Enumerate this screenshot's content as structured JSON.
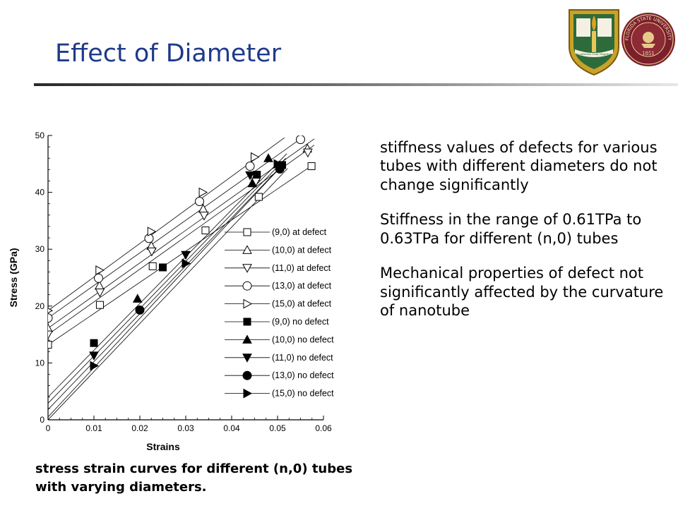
{
  "slide": {
    "title": "Effect of Diameter",
    "caption": "stress strain curves for different (n,0) tubes with varying diameters.",
    "bullets": [
      "stiffness values of defects for various tubes with different diameters do not change significantly",
      "Stiffness in the range of 0.61TPa to 0.63TPa for different (n,0) tubes",
      "Mechanical properties of defect not significantly affected by the curvature of nanotube"
    ],
    "crest_motto": "Excellentia Cum Dignitate",
    "seal_text": "FLORIDA STATE UNIVERSITY",
    "seal_year": "1851",
    "colors": {
      "title": "#1f3a8a",
      "crest_green": "#2e6b3a",
      "crest_gold": "#c9a227",
      "seal_red": "#7a1f2b"
    }
  },
  "chart_data": {
    "type": "scatter",
    "xlabel": "Strains",
    "ylabel": "Stress (GPa)",
    "xlim": [
      0,
      0.06
    ],
    "ylim": [
      0,
      50
    ],
    "xticks": [
      "0",
      "0.01",
      "0.02",
      "0.03",
      "0.04",
      "0.05",
      "0.06"
    ],
    "yticks": [
      "0",
      "10",
      "20",
      "30",
      "40",
      "50"
    ],
    "legend_position": "right",
    "grid": false,
    "series": [
      {
        "name": "(9,0) at defect",
        "marker": "square-open",
        "x": [
          0,
          0.0113,
          0.0228,
          0.0343,
          0.0459,
          0.0574
        ],
        "y": [
          13.2,
          20.2,
          27.0,
          33.3,
          39.2,
          44.6
        ]
      },
      {
        "name": "(10,0) at defect",
        "marker": "triangle-up-open",
        "x": [
          0,
          0.0112,
          0.0225,
          0.0338,
          0.0452,
          0.0565
        ],
        "y": [
          16.1,
          23.6,
          30.6,
          37.1,
          42.7,
          47.7
        ]
      },
      {
        "name": "(11,0) at defect",
        "marker": "triangle-down-open",
        "x": [
          0,
          0.0113,
          0.0226,
          0.034,
          0.0453,
          0.0566
        ],
        "y": [
          15.0,
          22.4,
          29.6,
          35.9,
          41.9,
          47.0
        ]
      },
      {
        "name": "(13,0) at defect",
        "marker": "circle-open",
        "x": [
          0,
          0.011,
          0.022,
          0.033,
          0.044,
          0.055
        ],
        "y": [
          17.9,
          24.9,
          31.9,
          38.4,
          44.6,
          49.3
        ]
      },
      {
        "name": "(15,0) at defect",
        "marker": "triangle-right-open",
        "x": [
          0,
          0.0112,
          0.0225,
          0.0337,
          0.045,
          0.0562
        ],
        "y": [
          19.2,
          26.3,
          33.1,
          40.0,
          46.2,
          51.3
        ]
      },
      {
        "name": "(9,0) no defect",
        "marker": "square-filled",
        "x": [
          0.01,
          0.025,
          0.0455,
          0.051
        ],
        "y": [
          13.5,
          26.8,
          43.1,
          44.8
        ]
      },
      {
        "name": "(10,0) no defect",
        "marker": "triangle-up-filled",
        "x": [
          0.0195,
          0.0445,
          0.048
        ],
        "y": [
          21.3,
          41.6,
          46.0
        ]
      },
      {
        "name": "(11,0) no defect",
        "marker": "triangle-down-filled",
        "x": [
          0.01,
          0.03,
          0.044
        ],
        "y": [
          11.3,
          29.0,
          43.0
        ]
      },
      {
        "name": "(13,0) no defect",
        "marker": "circle-filled",
        "x": [
          0.02,
          0.0505
        ],
        "y": [
          19.3,
          44.1
        ]
      },
      {
        "name": "(15,0) no defect",
        "marker": "triangle-right-filled",
        "x": [
          0.01,
          0.03,
          0.05
        ],
        "y": [
          9.5,
          27.5,
          45.0
        ]
      }
    ],
    "lines": [
      {
        "x": [
          0,
          0.058
        ],
        "y": [
          13.2,
          45.0
        ]
      },
      {
        "x": [
          0,
          0.058
        ],
        "y": [
          15.0,
          48.3
        ]
      },
      {
        "x": [
          0,
          0.058
        ],
        "y": [
          16.1,
          49.4
        ]
      },
      {
        "x": [
          0,
          0.055
        ],
        "y": [
          17.9,
          49.4
        ]
      },
      {
        "x": [
          0,
          0.0515
        ],
        "y": [
          19.2,
          49.6
        ]
      },
      {
        "x": [
          0,
          0.0505
        ],
        "y": [
          0.5,
          44.3
        ]
      },
      {
        "x": [
          0,
          0.0515
        ],
        "y": [
          1.8,
          45.2
        ]
      },
      {
        "x": [
          0,
          0.0518
        ],
        "y": [
          2.9,
          46.0
        ]
      },
      {
        "x": [
          0,
          0.052
        ],
        "y": [
          4.0,
          46.8
        ]
      },
      {
        "x": [
          0,
          0.0522
        ],
        "y": [
          0.0,
          44.2
        ]
      }
    ]
  }
}
